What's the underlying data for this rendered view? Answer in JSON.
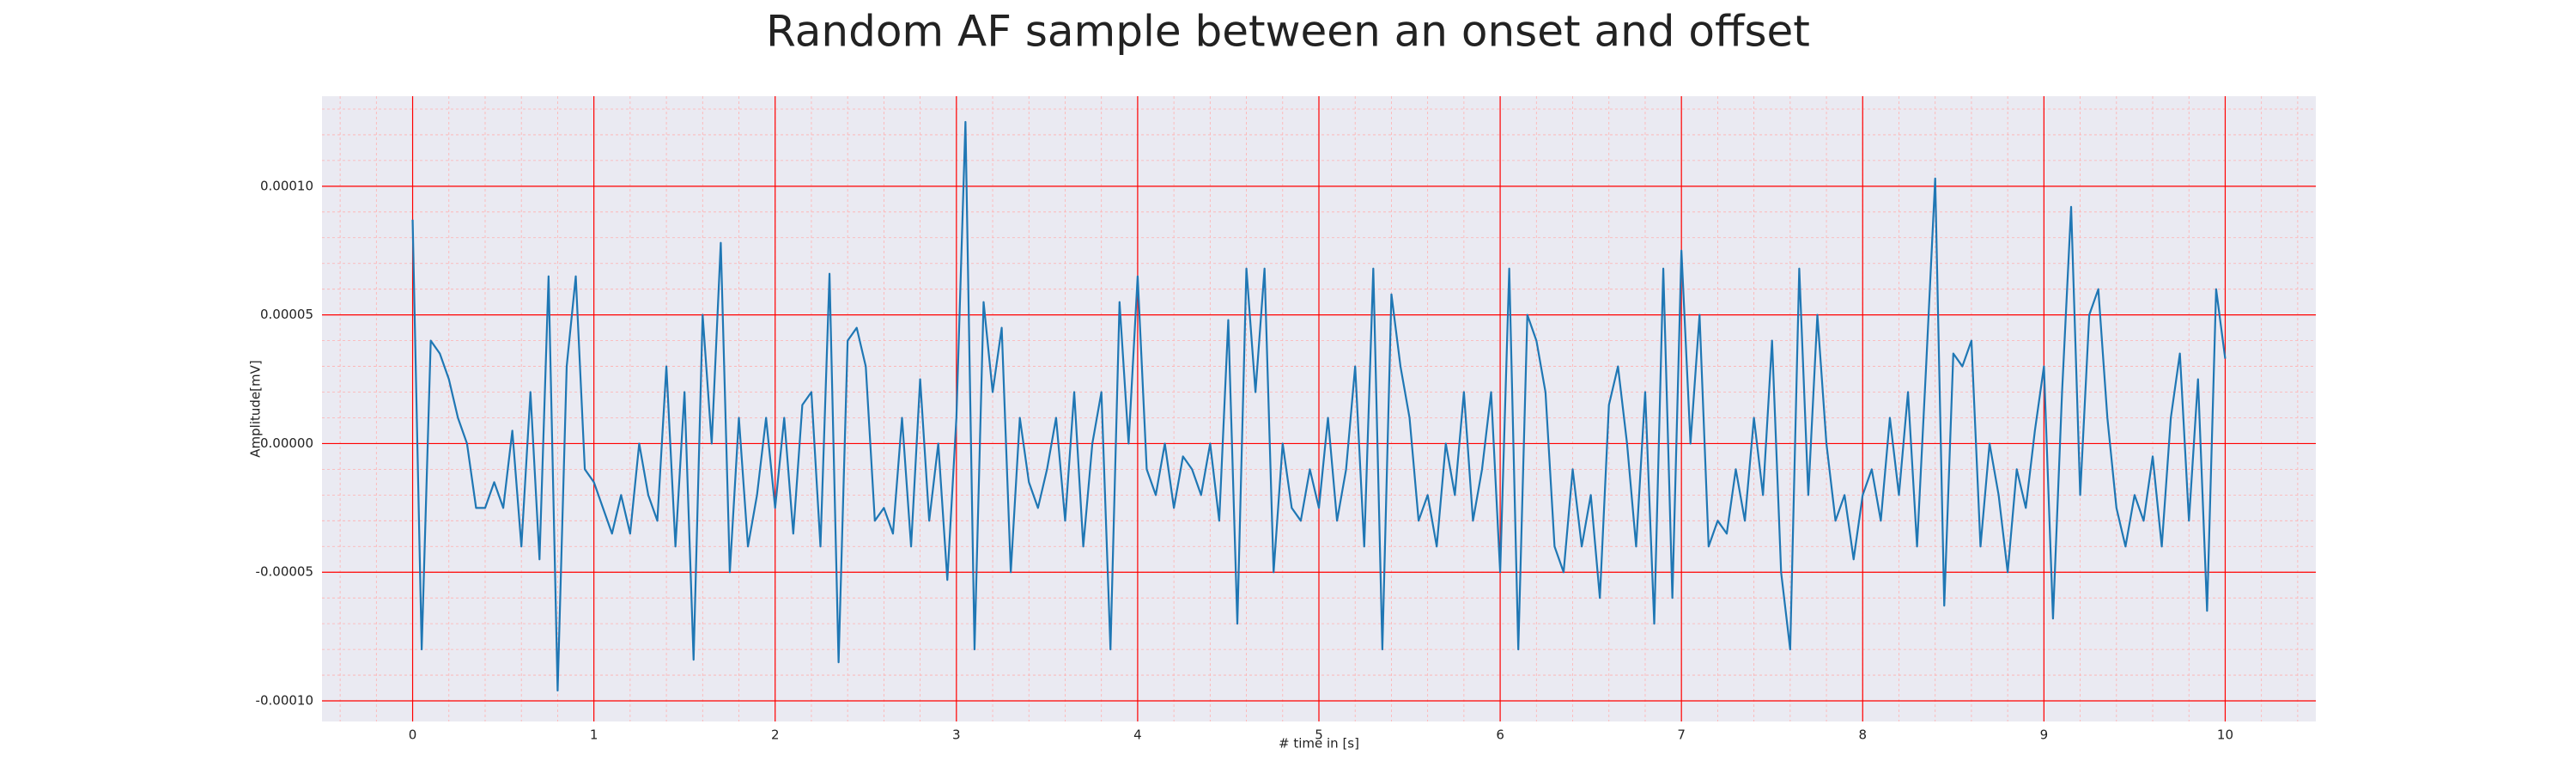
{
  "chart_data": {
    "type": "line",
    "title": "Random AF sample between an onset and offset",
    "xlabel": "# time in [s]",
    "ylabel": "Amplitude[mV]",
    "x": [
      0,
      0.05,
      0.1,
      0.15,
      0.2,
      0.25,
      0.3,
      0.35,
      0.4,
      0.45,
      0.5,
      0.55,
      0.6,
      0.65,
      0.7,
      0.75,
      0.8,
      0.85,
      0.9,
      0.95,
      1,
      1.05,
      1.1,
      1.15,
      1.2,
      1.25,
      1.3,
      1.35,
      1.4,
      1.45,
      1.5,
      1.55,
      1.6,
      1.65,
      1.7,
      1.75,
      1.8,
      1.85,
      1.9,
      1.95,
      2,
      2.05,
      2.1,
      2.15,
      2.2,
      2.25,
      2.3,
      2.35,
      2.4,
      2.45,
      2.5,
      2.55,
      2.6,
      2.65,
      2.7,
      2.75,
      2.8,
      2.85,
      2.9,
      2.95,
      3,
      3.05,
      3.1,
      3.15,
      3.2,
      3.25,
      3.3,
      3.35,
      3.4,
      3.45,
      3.5,
      3.55,
      3.6,
      3.65,
      3.7,
      3.75,
      3.8,
      3.85,
      3.9,
      3.95,
      4,
      4.05,
      4.1,
      4.15,
      4.2,
      4.25,
      4.3,
      4.35,
      4.4,
      4.45,
      4.5,
      4.55,
      4.6,
      4.65,
      4.7,
      4.75,
      4.8,
      4.85,
      4.9,
      4.95,
      5,
      5.05,
      5.1,
      5.15,
      5.2,
      5.25,
      5.3,
      5.35,
      5.4,
      5.45,
      5.5,
      5.55,
      5.6,
      5.65,
      5.7,
      5.75,
      5.8,
      5.85,
      5.9,
      5.95,
      6,
      6.05,
      6.1,
      6.15,
      6.2,
      6.25,
      6.3,
      6.35,
      6.4,
      6.45,
      6.5,
      6.55,
      6.6,
      6.65,
      6.7,
      6.75,
      6.8,
      6.85,
      6.9,
      6.95,
      7,
      7.05,
      7.1,
      7.15,
      7.2,
      7.25,
      7.3,
      7.35,
      7.4,
      7.45,
      7.5,
      7.55,
      7.6,
      7.65,
      7.7,
      7.75,
      7.8,
      7.85,
      7.9,
      7.95,
      8,
      8.05,
      8.1,
      8.15,
      8.2,
      8.25,
      8.3,
      8.35,
      8.4,
      8.45,
      8.5,
      8.55,
      8.6,
      8.65,
      8.7,
      8.75,
      8.8,
      8.85,
      8.9,
      8.95,
      9,
      9.05,
      9.1,
      9.15,
      9.2,
      9.25,
      9.3,
      9.35,
      9.4,
      9.45,
      9.5,
      9.55,
      9.6,
      9.65,
      9.7,
      9.75,
      9.8,
      9.85,
      9.9,
      9.95,
      10
    ],
    "series": [
      {
        "name": "Amplitude",
        "color": "#1f77b4",
        "values": [
          8.7e-05,
          -8e-05,
          4e-05,
          3.5e-05,
          2.5e-05,
          1e-05,
          0,
          -2.5e-05,
          -2.5e-05,
          -1.5e-05,
          -2.5e-05,
          5e-06,
          -4e-05,
          2e-05,
          -4.5e-05,
          6.5e-05,
          -9.6e-05,
          3e-05,
          6.5e-05,
          -1e-05,
          -1.5e-05,
          -2.5e-05,
          -3.5e-05,
          -2e-05,
          -3.5e-05,
          0,
          -2e-05,
          -3e-05,
          3e-05,
          -4e-05,
          2e-05,
          -8.4e-05,
          5e-05,
          0,
          7.8e-05,
          -5e-05,
          1e-05,
          -4e-05,
          -2e-05,
          1e-05,
          -2.5e-05,
          1e-05,
          -3.5e-05,
          1.5e-05,
          2e-05,
          -4e-05,
          6.6e-05,
          -8.5e-05,
          4e-05,
          4.5e-05,
          3e-05,
          -3e-05,
          -2.5e-05,
          -3.5e-05,
          1e-05,
          -4e-05,
          2.5e-05,
          -3e-05,
          0,
          -5.3e-05,
          1e-05,
          0.000125,
          -8e-05,
          5.5e-05,
          2e-05,
          4.5e-05,
          -5e-05,
          1e-05,
          -1.5e-05,
          -2.5e-05,
          -1e-05,
          1e-05,
          -3e-05,
          2e-05,
          -4e-05,
          0,
          2e-05,
          -8e-05,
          5.5e-05,
          0,
          6.5e-05,
          -1e-05,
          -2e-05,
          0,
          -2.5e-05,
          -5e-06,
          -1e-05,
          -2e-05,
          0,
          -3e-05,
          4.8e-05,
          -7e-05,
          6.8e-05,
          2e-05,
          6.8e-05,
          -5e-05,
          0,
          -2.5e-05,
          -3e-05,
          -1e-05,
          -2.5e-05,
          1e-05,
          -3e-05,
          -1e-05,
          3e-05,
          -4e-05,
          6.8e-05,
          -8e-05,
          5.8e-05,
          3e-05,
          1e-05,
          -3e-05,
          -2e-05,
          -4e-05,
          0,
          -2e-05,
          2e-05,
          -3e-05,
          -1e-05,
          2e-05,
          -5e-05,
          6.8e-05,
          -8e-05,
          5e-05,
          4e-05,
          2e-05,
          -4e-05,
          -5e-05,
          -1e-05,
          -4e-05,
          -2e-05,
          -6e-05,
          1.5e-05,
          3e-05,
          0,
          -4e-05,
          2e-05,
          -7e-05,
          6.8e-05,
          -6e-05,
          7.5e-05,
          0,
          5e-05,
          -4e-05,
          -3e-05,
          -3.5e-05,
          -1e-05,
          -3e-05,
          1e-05,
          -2e-05,
          4e-05,
          -5e-05,
          -8e-05,
          6.8e-05,
          -2e-05,
          5e-05,
          0,
          -3e-05,
          -2e-05,
          -4.5e-05,
          -2e-05,
          -1e-05,
          -3e-05,
          1e-05,
          -2e-05,
          2e-05,
          -4e-05,
          3e-05,
          0.000103,
          -6.3e-05,
          3.5e-05,
          3e-05,
          4e-05,
          -4e-05,
          0,
          -2e-05,
          -5e-05,
          -1e-05,
          -2.5e-05,
          5e-06,
          3e-05,
          -6.8e-05,
          2e-05,
          9.2e-05,
          -2e-05,
          5e-05,
          6e-05,
          1e-05,
          -2.5e-05,
          -4e-05,
          -2e-05,
          -3e-05,
          -5e-06,
          -4e-05,
          1e-05,
          3.5e-05,
          -3e-05,
          2.5e-05,
          -6.5e-05,
          6e-05,
          3.3e-05
        ]
      }
    ],
    "xlim": [
      -0.5,
      10.5
    ],
    "ylim": [
      -0.000108,
      0.000135
    ],
    "xticks": [
      0,
      1,
      2,
      3,
      4,
      5,
      6,
      7,
      8,
      9,
      10
    ],
    "yticks": [
      {
        "value": -0.0001,
        "label": "-0.00010"
      },
      {
        "value": -5e-05,
        "label": "-0.00005"
      },
      {
        "value": 0,
        "label": "0.00000"
      },
      {
        "value": 5e-05,
        "label": "0.00005"
      },
      {
        "value": 0.0001,
        "label": "0.00010"
      }
    ],
    "grid": true,
    "grid_color": "#ff0000",
    "minor_grid": {
      "xstep": 0.2,
      "ystep": 1e-05,
      "color": "#ffb0b0"
    },
    "background": "#eaeaf2"
  }
}
